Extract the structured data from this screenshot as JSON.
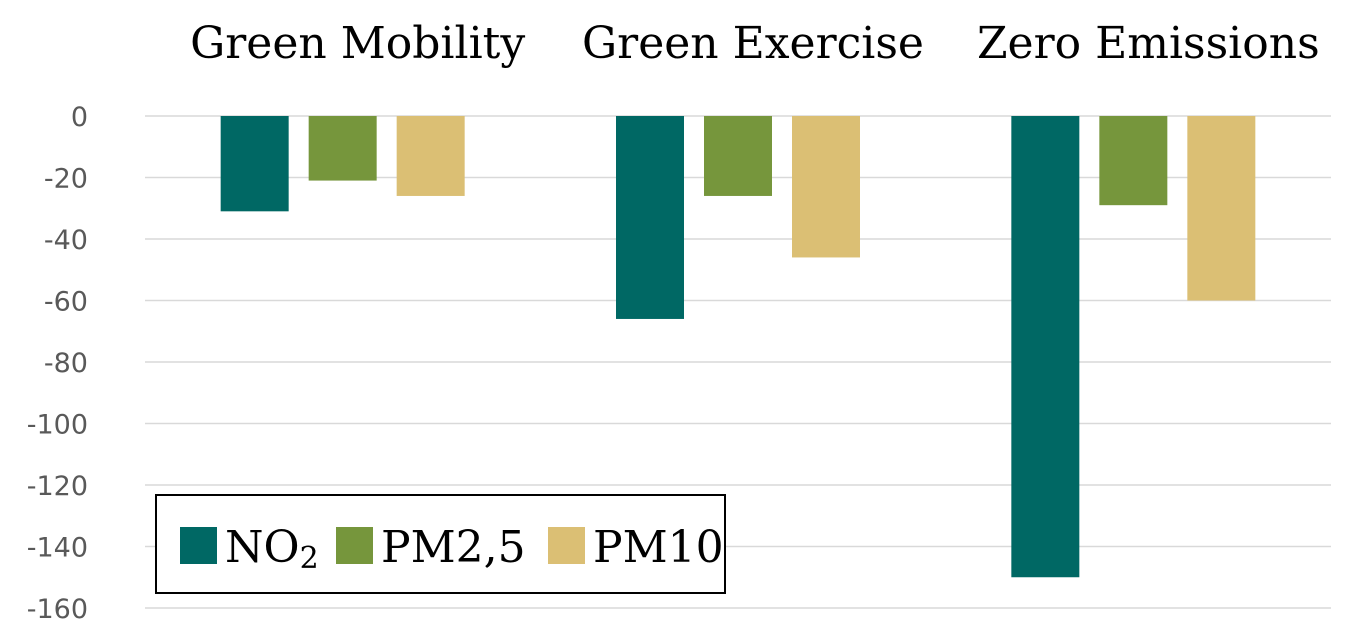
{
  "chart_data": {
    "type": "bar",
    "title": "",
    "xlabel": "",
    "ylabel": "",
    "categories": [
      "Green Mobility",
      "Green Exercise",
      "Zero Emissions"
    ],
    "series": [
      {
        "name": "NO",
        "subscript": "2",
        "color": "#006864",
        "values": [
          -31,
          -66,
          -150
        ]
      },
      {
        "name": "PM2,5",
        "subscript": "",
        "color": "#76963c",
        "values": [
          -21,
          -26,
          -29
        ]
      },
      {
        "name": "PM10",
        "subscript": "",
        "color": "#dbbf74",
        "values": [
          -26,
          -46,
          -60
        ]
      }
    ],
    "ylim": [
      -160,
      0
    ],
    "yticks": [
      0,
      -20,
      -40,
      -60,
      -80,
      -100,
      -120,
      -140,
      -160
    ],
    "ytick_labels": [
      "0",
      "-20",
      "-40",
      "-60",
      "-80",
      "-100",
      "-120",
      "-140",
      "-160"
    ],
    "grid": true,
    "legend_position": "bottom-left",
    "category_label_position": "top"
  }
}
